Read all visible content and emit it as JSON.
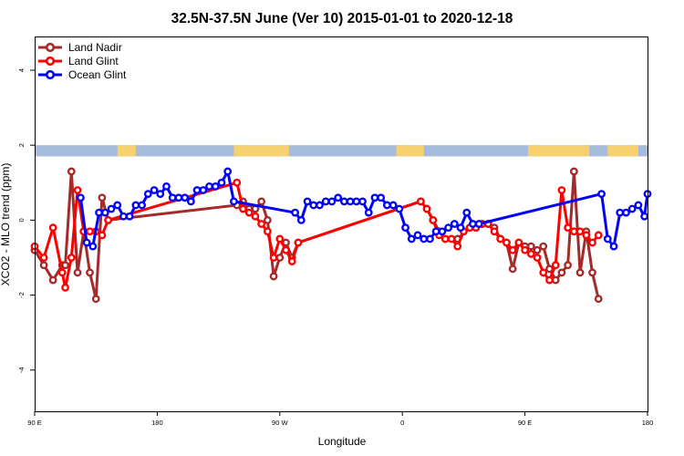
{
  "chart_data": {
    "type": "line",
    "title": "32.5N-37.5N June (Ver 10)   2015-01-01 to 2020-12-18",
    "xlabel": "Longitude",
    "ylabel": "XCO2 - MLO trend (ppm)",
    "xlim": [
      0,
      100
    ],
    "ylim": [
      -5.1,
      4.9
    ],
    "x_ticks": [
      {
        "pos": 0,
        "label": "90 E"
      },
      {
        "pos": 20,
        "label": "180"
      },
      {
        "pos": 40,
        "label": "90 W"
      },
      {
        "pos": 60,
        "label": "0"
      },
      {
        "pos": 80,
        "label": "90 E"
      },
      {
        "pos": 100,
        "label": "180"
      }
    ],
    "y_ticks": [
      {
        "value": -4,
        "label": "-4"
      },
      {
        "value": -2,
        "label": "-2"
      },
      {
        "value": 0,
        "label": "0"
      },
      {
        "value": 2,
        "label": "2"
      },
      {
        "value": 4,
        "label": "4"
      }
    ],
    "grid": false,
    "legend_position": "top-left",
    "band": {
      "y_range": [
        1.7,
        2.0
      ],
      "ocean_color": "#a6bcdc",
      "land_color": "#f7d170",
      "land_segments": [
        [
          13.5,
          16.5
        ],
        [
          32.5,
          41.5
        ],
        [
          59,
          63.5
        ],
        [
          80.5,
          90.5
        ],
        [
          93.5,
          98.5
        ]
      ]
    },
    "series": [
      {
        "name": "Land Nadir",
        "color": "#a52a2a",
        "x": [
          0,
          1.5,
          3,
          4.5,
          5,
          6,
          7,
          8,
          9,
          10,
          11,
          12,
          33,
          34,
          35,
          36,
          37,
          38,
          39,
          40,
          41,
          42,
          43,
          63,
          64,
          65,
          66,
          67,
          69,
          71,
          72,
          73,
          74,
          75,
          76,
          77,
          78,
          79,
          80,
          81,
          82,
          83,
          84,
          85,
          86,
          87,
          88,
          89,
          90,
          91,
          92
        ],
        "y": [
          -0.8,
          -1.2,
          -1.6,
          -1.2,
          -1.2,
          1.3,
          -1.4,
          -0.3,
          -1.4,
          -2.1,
          0.6,
          0.0,
          0.4,
          0.5,
          0.3,
          0.3,
          0.5,
          0.0,
          -1.5,
          -1.0,
          -0.6,
          -1.0,
          -0.6,
          0.5,
          0.3,
          0.0,
          -0.3,
          -0.5,
          -0.5,
          -0.2,
          -0.2,
          -0.1,
          -0.1,
          -0.2,
          -0.5,
          -0.6,
          -1.3,
          -0.6,
          -0.7,
          -0.7,
          -0.8,
          -0.7,
          -1.3,
          -1.6,
          -1.4,
          -1.2,
          1.3,
          -1.4,
          -0.3,
          -1.4,
          -2.1
        ]
      },
      {
        "name": "Land Glint",
        "color": "#ff0000",
        "x": [
          0,
          1.5,
          3,
          4.5,
          5,
          6,
          7,
          8,
          9,
          10,
          11,
          12,
          33,
          34,
          35,
          36,
          37,
          38,
          39,
          40,
          41,
          42,
          43,
          63,
          64,
          65,
          66,
          67,
          68,
          69,
          70,
          71,
          72,
          73,
          74,
          75,
          76,
          77,
          78,
          79,
          80,
          81,
          82,
          83,
          84,
          85,
          86,
          87,
          88,
          89,
          90,
          91,
          92
        ],
        "y": [
          -0.7,
          -1.0,
          -0.2,
          -1.4,
          -1.8,
          -1.0,
          0.8,
          -0.3,
          -0.3,
          -0.3,
          -0.4,
          0.0,
          1.0,
          0.3,
          0.2,
          0.1,
          -0.1,
          -0.3,
          -1.0,
          -0.5,
          -0.8,
          -1.1,
          -0.6,
          0.5,
          0.3,
          0.0,
          -0.4,
          -0.5,
          -0.5,
          -0.7,
          -0.3,
          -0.2,
          -0.2,
          -0.1,
          -0.1,
          -0.3,
          -0.5,
          -0.6,
          -0.8,
          -0.6,
          -0.8,
          -0.9,
          -1.0,
          -1.4,
          -1.6,
          -1.2,
          0.8,
          -0.2,
          -0.3,
          -0.3,
          -0.4,
          -0.6,
          -0.4
        ]
      },
      {
        "name": "Ocean Glint",
        "color": "#0000ff",
        "x": [
          7.5,
          8.5,
          9.5,
          10.5,
          11.5,
          12.5,
          13.5,
          14.5,
          15.5,
          16.5,
          17.5,
          18.5,
          19.5,
          20.5,
          21.5,
          22.5,
          23.5,
          24.5,
          25.5,
          26.5,
          27.5,
          28.5,
          29.5,
          30.5,
          31.5,
          32.5,
          42.5,
          43.5,
          44.5,
          45.5,
          46.5,
          47.5,
          48.5,
          49.5,
          50.5,
          51.5,
          52.5,
          53.5,
          54.5,
          55.5,
          56.5,
          57.5,
          58.5,
          59.5,
          60.5,
          61.5,
          62.5,
          63.5,
          64.5,
          65.5,
          66.5,
          67.5,
          68.5,
          69.5,
          70.5,
          71.5,
          72.5,
          92.5,
          93.5,
          94.5,
          95.5,
          96.5,
          97.5,
          98.5,
          99.5,
          100
        ],
        "y": [
          0.6,
          -0.6,
          -0.7,
          0.2,
          0.2,
          0.3,
          0.4,
          0.1,
          0.1,
          0.4,
          0.4,
          0.7,
          0.8,
          0.7,
          0.9,
          0.6,
          0.6,
          0.6,
          0.5,
          0.8,
          0.8,
          0.9,
          0.9,
          1.0,
          1.3,
          0.5,
          0.2,
          0.0,
          0.5,
          0.4,
          0.4,
          0.5,
          0.5,
          0.6,
          0.5,
          0.5,
          0.5,
          0.5,
          0.2,
          0.6,
          0.6,
          0.4,
          0.4,
          0.3,
          -0.2,
          -0.5,
          -0.4,
          -0.5,
          -0.5,
          -0.3,
          -0.3,
          -0.2,
          -0.1,
          -0.2,
          0.2,
          -0.1,
          -0.1,
          0.7,
          -0.5,
          -0.7,
          0.2,
          0.2,
          0.3,
          0.4,
          0.1,
          0.7
        ]
      }
    ]
  }
}
